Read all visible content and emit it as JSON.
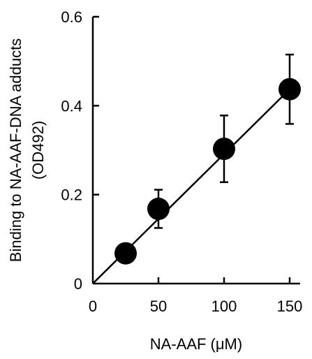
{
  "chart_data": {
    "type": "scatter",
    "title": "",
    "xlabel": "NA-AAF (μM)",
    "ylabel_line1": "Binding to NA-AAF-DNA adducts",
    "ylabel_line2": "(OD492)",
    "xlim": [
      0,
      160
    ],
    "ylim": [
      0,
      0.6
    ],
    "x_ticks": [
      0,
      50,
      100,
      150
    ],
    "x_tick_labels": [
      "0",
      "50",
      "100",
      "150"
    ],
    "y_ticks": [
      0,
      0.2,
      0.4,
      0.6
    ],
    "y_tick_labels": [
      "0",
      "0.2",
      "0.4",
      "0.6"
    ],
    "grid": false,
    "legend": "none",
    "points": [
      {
        "x": 25,
        "y": 0.068,
        "err": 0
      },
      {
        "x": 50,
        "y": 0.168,
        "err": 0.043
      },
      {
        "x": 100,
        "y": 0.303,
        "err": 0.075
      },
      {
        "x": 150,
        "y": 0.437,
        "err": 0.078
      }
    ],
    "fit_line": {
      "x": [
        0,
        150
      ],
      "y": [
        0,
        0.437
      ]
    },
    "marker_color": "#000000"
  }
}
